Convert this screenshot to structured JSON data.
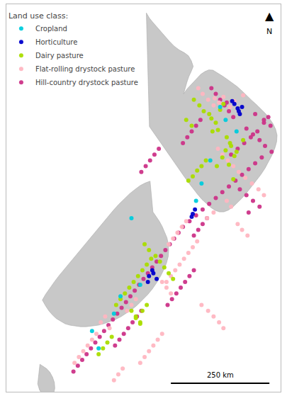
{
  "chart_data": {
    "type": "scatter",
    "xlim": [
      166.3,
      178.8
    ],
    "ylim": [
      -47.5,
      -34.1
    ],
    "grid": false,
    "tick_labels": false,
    "legend": "upper left",
    "legend_title": "Land use class:",
    "annotations": {
      "north_arrow": "▲",
      "north": "N",
      "scale_bar": "250 km"
    },
    "map": {
      "color": "#C8C8C8",
      "edge_color": "#AAAAAA",
      "shapes": [
        {
          "lon": [
            172.68,
            172.73,
            172.82,
            172.97,
            173.14,
            173.32,
            173.52,
            173.73,
            173.95,
            174.18,
            174.42,
            174.6,
            174.73,
            174.82,
            174.73,
            174.62,
            174.53,
            174.45,
            174.38,
            174.55,
            174.72,
            174.88,
            175.02,
            175.17,
            175.35,
            175.53,
            175.72,
            175.93,
            176.15,
            176.38,
            176.6,
            176.83,
            177.05,
            177.27,
            177.5,
            177.72,
            177.93,
            178.12,
            178.3,
            178.46,
            178.58,
            178.65,
            178.63,
            178.55,
            178.43,
            178.28,
            178.1,
            177.9,
            177.68,
            177.47,
            177.25,
            177.03,
            176.82,
            176.62,
            176.42,
            176.22,
            176.02,
            175.83,
            175.63,
            175.43,
            175.22,
            175.02,
            174.82,
            174.62,
            174.42,
            174.22,
            174.02,
            173.82,
            173.62,
            173.42,
            173.22,
            173.02,
            172.82,
            172.68
          ],
          "lat": [
            -34.4,
            -34.47,
            -34.58,
            -34.72,
            -34.87,
            -35.03,
            -35.2,
            -35.38,
            -35.55,
            -35.68,
            -35.78,
            -35.88,
            -36.05,
            -36.25,
            -36.42,
            -36.6,
            -36.8,
            -37.0,
            -37.2,
            -37.02,
            -36.88,
            -36.75,
            -36.63,
            -36.52,
            -36.43,
            -36.37,
            -36.38,
            -36.47,
            -36.58,
            -36.7,
            -36.82,
            -36.95,
            -37.1,
            -37.27,
            -37.43,
            -37.58,
            -37.73,
            -37.88,
            -38.05,
            -38.23,
            -38.42,
            -38.63,
            -38.85,
            -39.07,
            -39.3,
            -39.53,
            -39.77,
            -40.0,
            -40.22,
            -40.43,
            -40.63,
            -40.82,
            -40.98,
            -41.12,
            -41.22,
            -41.28,
            -41.28,
            -41.23,
            -41.13,
            -41.0,
            -40.85,
            -40.67,
            -40.48,
            -40.28,
            -40.07,
            -39.85,
            -39.63,
            -39.42,
            -39.2,
            -38.98,
            -38.77,
            -38.55,
            -38.33,
            -34.4
          ]
        },
        {
          "lon": [
            172.98,
            173.13,
            173.27,
            173.4,
            173.52,
            173.62,
            173.68,
            173.7,
            173.68,
            173.6,
            173.48,
            173.33,
            173.15,
            172.95,
            172.73,
            172.5,
            172.27,
            172.03,
            171.78,
            171.53,
            171.27,
            171.0,
            170.73,
            170.47,
            170.2,
            169.93,
            169.68,
            169.43,
            169.2,
            168.97,
            168.77,
            168.57,
            168.4,
            168.23,
            168.08,
            167.93,
            168.08,
            168.27,
            168.48,
            168.7,
            168.93,
            169.17,
            169.42,
            169.67,
            169.92,
            170.17,
            170.42,
            170.67,
            170.92,
            171.17,
            171.42,
            171.67,
            171.92,
            172.17,
            172.4,
            172.63,
            172.85,
            172.98
          ],
          "lat": [
            -41.28,
            -41.43,
            -41.6,
            -41.78,
            -41.97,
            -42.17,
            -42.38,
            -42.6,
            -42.82,
            -43.05,
            -43.27,
            -43.5,
            -43.73,
            -43.95,
            -44.15,
            -44.33,
            -44.5,
            -44.65,
            -44.78,
            -44.9,
            -45.0,
            -45.08,
            -45.15,
            -45.2,
            -45.23,
            -45.25,
            -45.25,
            -45.23,
            -45.2,
            -45.15,
            -45.07,
            -44.97,
            -44.85,
            -44.7,
            -44.53,
            -44.33,
            -44.13,
            -43.92,
            -43.7,
            -43.48,
            -43.27,
            -43.05,
            -42.83,
            -42.6,
            -42.37,
            -42.13,
            -41.9,
            -41.67,
            -41.45,
            -41.23,
            -41.02,
            -40.83,
            -40.65,
            -40.5,
            -40.37,
            -40.28,
            -40.22,
            -41.28
          ]
        },
        {
          "lon": [
            167.82,
            167.97,
            168.12,
            168.27,
            168.4,
            168.48,
            168.5,
            168.45,
            168.35,
            168.22,
            168.08,
            167.93,
            167.8,
            167.72,
            167.75,
            167.82
          ],
          "lat": [
            -46.55,
            -46.62,
            -46.7,
            -46.82,
            -47.0,
            -47.18,
            -47.38,
            -47.55,
            -47.67,
            -47.72,
            -47.7,
            -47.6,
            -47.43,
            -47.23,
            -47.0,
            -46.55
          ]
        }
      ]
    },
    "series": [
      {
        "name": "Cropland",
        "color": "#00CCDD",
        "x": [
          176.05,
          175.6,
          174.95,
          175.2,
          176.3,
          176.8,
          171.5,
          171.2,
          172.0,
          172.4,
          170.5,
          170.2
        ],
        "y": [
          -37.65,
          -39.5,
          -40.9,
          -40.3,
          -38.1,
          -38.5,
          -44.2,
          -44.8,
          -41.5,
          -43.8,
          -46.0,
          -45.4
        ]
      },
      {
        "name": "Horticulture",
        "color": "#0000CC",
        "x": [
          176.85,
          176.9,
          177.05,
          176.7,
          176.6,
          176.95,
          173.0,
          172.8,
          172.95,
          173.15,
          172.75,
          174.9,
          174.8,
          174.75
        ],
        "y": [
          -37.7,
          -37.8,
          -37.65,
          -37.55,
          -37.45,
          -37.9,
          -43.4,
          -43.5,
          -43.3,
          -43.6,
          -43.7,
          -41.2,
          -41.35,
          -41.45
        ]
      },
      {
        "name": "Dairy pasture",
        "color": "#AADD00",
        "x": [
          175.3,
          175.55,
          175.65,
          175.85,
          175.1,
          174.85,
          176.2,
          176.05,
          175.7,
          174.75,
          174.5,
          176.35,
          176.55,
          176.8,
          177.1,
          175.4,
          175.2,
          175.0,
          174.8,
          174.6,
          176.7,
          176.45,
          176.65,
          175.95,
          176.5,
          176.3,
          176.15,
          175.9,
          172.5,
          172.3,
          172.1,
          171.9,
          171.7,
          171.5,
          171.3,
          172.7,
          172.9,
          172.5,
          172.7,
          172.2,
          172.4,
          170.9,
          170.7,
          170.5,
          171.1,
          172.0,
          172.2,
          172.4,
          173.5,
          173.3,
          173.1,
          172.8,
          172.6,
          173.7,
          173.9
        ],
        "y": [
          -37.8,
          -37.9,
          -38.05,
          -38.2,
          -37.6,
          -37.4,
          -37.55,
          -37.75,
          -38.5,
          -38.3,
          -38.1,
          -38.7,
          -39.0,
          -39.2,
          -38.8,
          -39.5,
          -39.7,
          -39.85,
          -40.05,
          -40.2,
          -39.35,
          -39.65,
          -40.15,
          -38.45,
          -38.9,
          -39.15,
          -39.4,
          -39.7,
          -43.3,
          -43.5,
          -43.7,
          -43.9,
          -44.1,
          -44.3,
          -44.5,
          -43.1,
          -42.9,
          -44.7,
          -44.5,
          -44.95,
          -45.15,
          -45.8,
          -46.0,
          -46.2,
          -45.6,
          -44.7,
          -44.9,
          -45.1,
          -43.2,
          -43.0,
          -42.8,
          -42.6,
          -42.4,
          -43.4,
          -43.6
        ]
      },
      {
        "name": "Flat-rolling drystock pasture",
        "color": "#FFB6C1",
        "x": [
          175.95,
          176.15,
          176.4,
          176.65,
          176.9,
          177.2,
          177.5,
          177.8,
          178.05,
          176.35,
          176.55,
          175.75,
          175.45,
          176.85,
          177.05,
          177.3,
          176.2,
          176.0,
          175.75,
          175.5,
          175.25,
          175.05,
          175.0,
          174.8,
          174.6,
          174.4,
          174.2,
          174.0,
          173.8,
          173.6,
          175.2,
          175.5,
          175.75,
          176.0,
          176.2,
          174.5,
          174.3,
          174.1,
          173.9,
          173.7,
          173.4,
          173.2,
          173.0,
          172.8,
          172.6,
          172.4,
          171.6,
          171.4,
          171.2,
          171.0,
          170.8,
          170.6,
          170.4,
          170.2,
          170.0,
          169.8,
          169.6,
          169.4,
          173.8,
          173.6,
          173.4,
          172.2,
          172.0,
          171.8,
          175.8,
          176.1,
          176.5,
          176.7,
          177.1
        ],
        "y": [
          -39.1,
          -39.3,
          -39.5,
          -39.7,
          -39.9,
          -40.1,
          -40.3,
          -40.5,
          -40.7,
          -40.9,
          -41.1,
          -41.3,
          -41.5,
          -41.7,
          -41.9,
          -42.1,
          -37.3,
          -37.5,
          -37.6,
          -37.4,
          -37.2,
          -37.0,
          -42.3,
          -42.5,
          -42.7,
          -42.9,
          -43.1,
          -43.3,
          -43.5,
          -43.7,
          -44.5,
          -44.7,
          -44.9,
          -45.1,
          -45.3,
          -41.6,
          -41.8,
          -42.0,
          -42.2,
          -42.4,
          -45.5,
          -45.7,
          -45.9,
          -46.1,
          -46.3,
          -46.5,
          -46.7,
          -46.9,
          -47.1,
          -45.3,
          -44.9,
          -45.1,
          -45.5,
          -45.7,
          -45.9,
          -46.1,
          -46.3,
          -46.5,
          -44.1,
          -43.9,
          -43.7,
          -44.3,
          -44.5,
          -44.7,
          -37.35,
          -37.55,
          -37.65,
          -37.45,
          -37.25
        ]
      },
      {
        "name": "Hill-country drystock pasture",
        "color": "#CC3388",
        "x": [
          177.25,
          177.55,
          177.85,
          178.1,
          178.4,
          177.95,
          177.65,
          177.35,
          177.05,
          176.75,
          176.45,
          176.15,
          175.85,
          175.55,
          175.25,
          174.95,
          174.65,
          178.25,
          178.05,
          177.75,
          177.45,
          177.15,
          176.85,
          176.55,
          174.35,
          174.15,
          173.95,
          173.75,
          173.55,
          173.35,
          173.15,
          172.95,
          172.75,
          172.55,
          172.35,
          172.15,
          171.95,
          171.75,
          171.55,
          171.35,
          171.15,
          170.95,
          170.75,
          170.55,
          170.35,
          170.15,
          169.95,
          169.75,
          169.55,
          169.35,
          174.85,
          174.65,
          174.45,
          174.25,
          174.05,
          173.85,
          173.65,
          172.45,
          172.25,
          172.05,
          171.85,
          171.65,
          171.45,
          171.25,
          175.65,
          175.85,
          176.05,
          176.25,
          176.45,
          176.65,
          175.15,
          174.95,
          174.75,
          174.55,
          174.35,
          173.25,
          173.05,
          172.85,
          172.65,
          172.45,
          176.95,
          177.25,
          177.55,
          177.85,
          177.35,
          175.45,
          175.25,
          175.05,
          174.85,
          176.35,
          178.35,
          178.05,
          177.65
        ],
        "y": [
          -38.4,
          -38.6,
          -38.8,
          -39.0,
          -39.2,
          -39.4,
          -39.6,
          -39.8,
          -40.0,
          -40.2,
          -40.4,
          -40.6,
          -40.8,
          -41.0,
          -41.2,
          -41.4,
          -41.6,
          -38.0,
          -38.2,
          -38.5,
          -38.7,
          -38.9,
          -39.1,
          -39.3,
          -41.8,
          -42.0,
          -42.2,
          -42.4,
          -42.6,
          -42.8,
          -43.0,
          -43.2,
          -43.4,
          -43.6,
          -43.8,
          -44.0,
          -44.2,
          -44.4,
          -44.6,
          -44.8,
          -45.0,
          -45.2,
          -45.4,
          -45.6,
          -45.8,
          -46.0,
          -46.2,
          -46.4,
          -46.6,
          -46.8,
          -43.3,
          -43.5,
          -43.7,
          -43.9,
          -44.1,
          -44.3,
          -44.5,
          -44.7,
          -44.9,
          -45.1,
          -45.3,
          -45.5,
          -45.7,
          -45.9,
          -37.0,
          -37.2,
          -37.4,
          -37.6,
          -37.8,
          -38.0,
          -38.1,
          -38.3,
          -38.5,
          -38.7,
          -38.9,
          -39.1,
          -39.3,
          -39.5,
          -39.7,
          -39.9,
          -40.5,
          -40.7,
          -40.9,
          -41.1,
          -41.3,
          -41.5,
          -41.7,
          -41.9,
          -42.1,
          -37.5,
          -38.3,
          -38.1,
          -37.9
        ]
      }
    ]
  }
}
